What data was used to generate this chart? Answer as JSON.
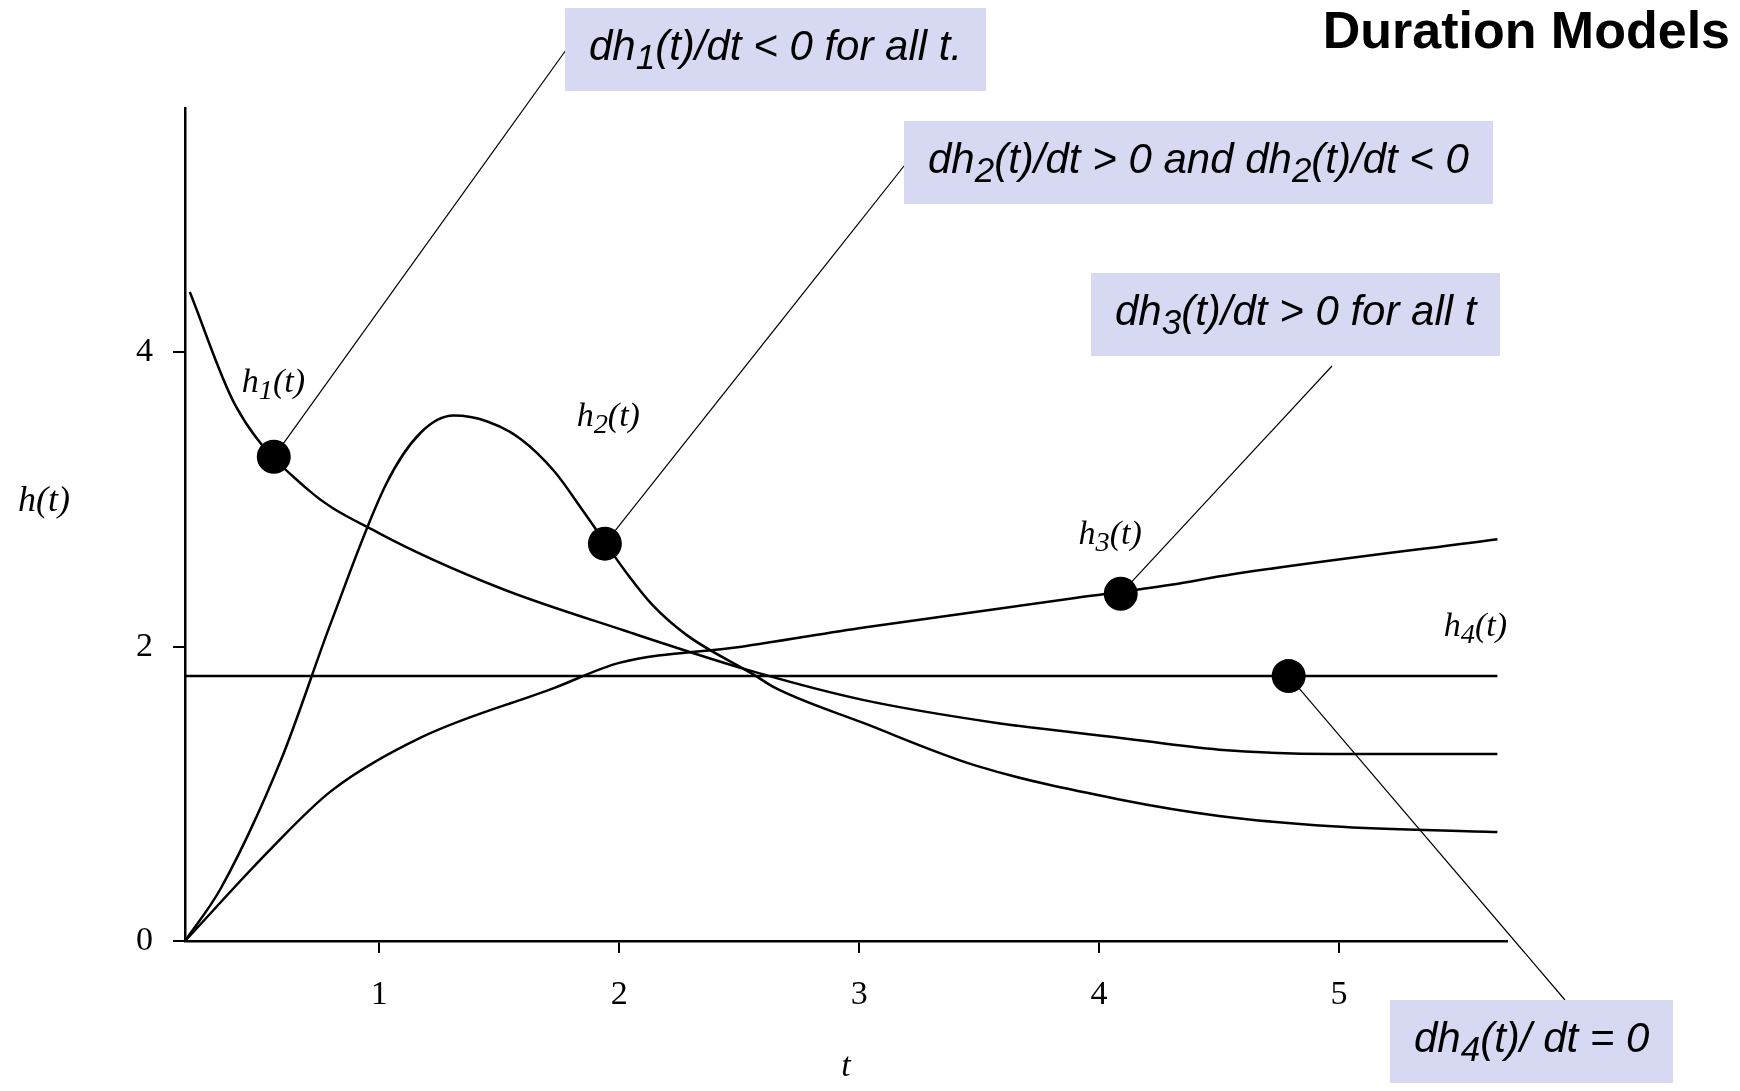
{
  "chart_data": {
    "type": "line",
    "title": "Duration Models",
    "xlabel": "t",
    "ylabel": "h(t)",
    "xlim": [
      0.19,
      5.7
    ],
    "ylim": [
      0,
      5.66
    ],
    "xticks": [
      1,
      2,
      3,
      4,
      5
    ],
    "yticks": [
      0,
      2,
      4
    ],
    "grid": false,
    "legend": false,
    "marker": "none",
    "line_style": "solid",
    "series": [
      {
        "name": "h$_{1}$(t)",
        "color": "#000000",
        "x": [
          0.21,
          0.4,
          0.7,
          1.0,
          1.5,
          2.02,
          2.56,
          3.01,
          3.58,
          4.09,
          4.5,
          4.97,
          5.66
        ],
        "values": [
          4.41,
          3.64,
          3.07,
          2.77,
          2.4,
          2.11,
          1.83,
          1.64,
          1.48,
          1.38,
          1.3,
          1.27,
          1.27
        ]
      },
      {
        "name": "h$_{2}$(t)",
        "color": "#000000",
        "x": [
          0.19,
          0.34,
          0.59,
          0.8,
          1.03,
          1.17,
          1.31,
          1.45,
          1.59,
          1.73,
          1.85,
          2.04,
          2.14,
          2.28,
          2.56,
          2.65,
          3.02,
          3.49,
          4.09,
          4.5,
          4.97,
          5.66
        ],
        "values": [
          0,
          0.36,
          1.23,
          2.17,
          3.11,
          3.45,
          3.57,
          3.53,
          3.41,
          3.19,
          2.92,
          2.48,
          2.28,
          2.08,
          1.81,
          1.72,
          1.48,
          1.19,
          0.96,
          0.85,
          0.78,
          0.74
        ]
      },
      {
        "name": "h$_{3}$(t)",
        "color": "#000000",
        "x": [
          0.19,
          0.55,
          0.8,
          1.17,
          1.73,
          2.0,
          2.51,
          3.02,
          3.9,
          4.3,
          4.55,
          5.66
        ],
        "values": [
          0,
          0.63,
          1.02,
          1.38,
          1.72,
          1.89,
          2.0,
          2.13,
          2.33,
          2.42,
          2.49,
          2.73
        ]
      },
      {
        "name": "h$_{4}$(t)",
        "color": "#000000",
        "x": [
          0.19,
          5.66
        ],
        "values": [
          1.8,
          1.8
        ]
      }
    ],
    "annotations": [
      {
        "text": "dh$_{1}$(t)/dt < 0 for all t.",
        "x": 0.56,
        "y": 3.29
      },
      {
        "text": "dh$_{2}$(t)/dt > 0 and dh$_{2}$(t)/dt < 0",
        "x": 1.94,
        "y": 2.7
      },
      {
        "text": "dh$_{3}$(t)/dt > 0 for all t",
        "x": 4.09,
        "y": 2.36
      },
      {
        "text": "dh$_{4}$(t)/ dt = 0",
        "x": 4.79,
        "y": 1.8
      }
    ]
  }
}
